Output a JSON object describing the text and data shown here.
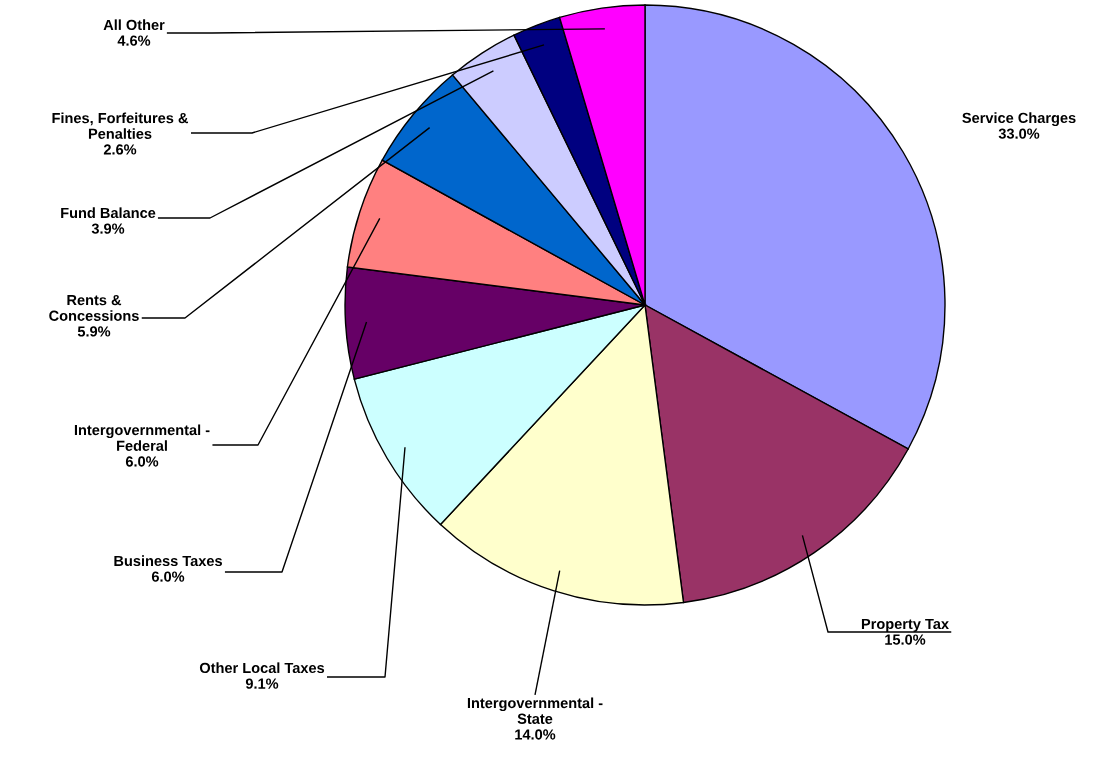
{
  "chart_data": {
    "type": "pie",
    "categories": [
      "Service Charges",
      "Property Tax",
      "Intergovernmental -\nState",
      "Other Local Taxes",
      "Business Taxes",
      "Intergovernmental -\nFederal",
      "Rents &\nConcessions",
      "Fund Balance",
      "Fines, Forfeitures &\nPenalties",
      "All Other"
    ],
    "values": [
      33.0,
      15.0,
      14.0,
      9.1,
      6.0,
      6.0,
      5.9,
      3.9,
      2.6,
      4.6
    ],
    "value_labels": [
      "33.0%",
      "15.0%",
      "14.0%",
      "9.1%",
      "6.0%",
      "6.0%",
      "5.9%",
      "3.9%",
      "2.6%",
      "4.6%"
    ],
    "colors": [
      "#9999ff",
      "#993366",
      "#ffffcc",
      "#ccffff",
      "#660066",
      "#ff8080",
      "#0066cc",
      "#ccccff",
      "#000080",
      "#ff00ff"
    ],
    "legend": false
  }
}
